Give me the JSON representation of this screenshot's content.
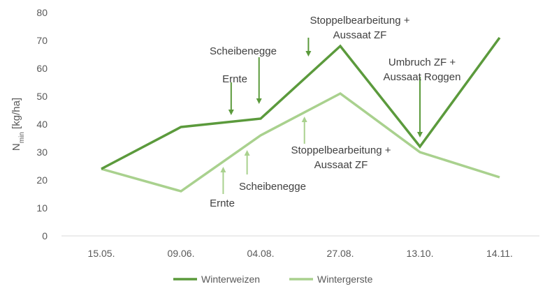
{
  "chart_data": {
    "type": "line",
    "categories": [
      "15.05.",
      "09.06.",
      "04.08.",
      "27.08.",
      "13.10.",
      "14.11."
    ],
    "series": [
      {
        "name": "Winterweizen",
        "values": [
          24,
          39,
          42,
          68,
          32,
          71
        ],
        "color": "#5b9a3c"
      },
      {
        "name": "Wintergerste",
        "values": [
          24,
          16,
          36,
          51,
          30,
          21
        ],
        "color": "#a9d18e"
      }
    ],
    "ylabel": {
      "main": "N",
      "sub": "min",
      "rest": " [kg/ha]"
    },
    "ylim": [
      0,
      80
    ],
    "yticks": [
      0,
      10,
      20,
      30,
      40,
      50,
      60,
      70,
      80
    ],
    "grid": false,
    "legend_position": "bottom",
    "annotations": [
      {
        "series": 0,
        "lines": [
          "Stoppelbearbeitung +",
          "Aussaat ZF"
        ],
        "arrow_x": 2.6,
        "arrow_y": [
          64,
          71
        ]
      },
      {
        "series": 0,
        "lines": [
          "Scheibenegge"
        ],
        "arrow_x": 1.98,
        "arrow_y": [
          47,
          64
        ]
      },
      {
        "series": 0,
        "lines": [
          "Ernte"
        ],
        "arrow_x": 1.63,
        "arrow_y": [
          43,
          55
        ]
      },
      {
        "series": 0,
        "lines": [
          "Umbruch ZF +",
          "Aussaat Roggen"
        ],
        "arrow_x": 4.0,
        "arrow_y": [
          35,
          57
        ]
      },
      {
        "series": 1,
        "lines": [
          "Stoppelbearbeitung +",
          "Aussaat ZF"
        ],
        "arrow_x": 2.55,
        "arrow_y": [
          43,
          33
        ]
      },
      {
        "series": 1,
        "lines": [
          "Scheibenegge"
        ],
        "arrow_x": 1.83,
        "arrow_y": [
          31,
          22
        ]
      },
      {
        "series": 1,
        "lines": [
          "Ernte"
        ],
        "arrow_x": 1.53,
        "arrow_y": [
          25,
          15
        ]
      }
    ]
  }
}
